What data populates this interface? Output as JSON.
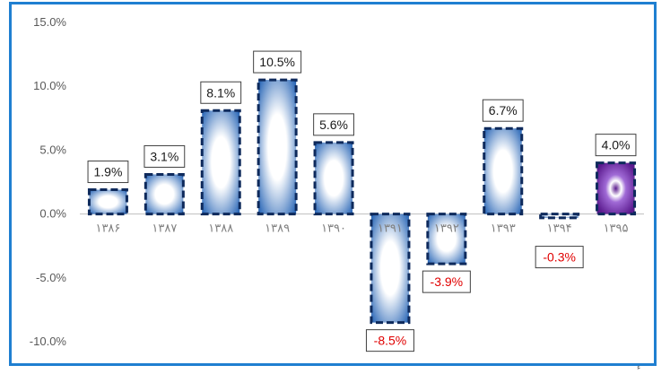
{
  "chart_data": {
    "type": "bar",
    "title": "",
    "xlabel": "",
    "ylabel": "",
    "categories": [
      "۱۳۸۶",
      "۱۳۸۷",
      "۱۳۸۸",
      "۱۳۸۹",
      "۱۳۹۰",
      "۱۳۹۱",
      "۱۳۹۲",
      "۱۳۹۳",
      "۱۳۹۴",
      "۱۳۹۵"
    ],
    "values": [
      1.9,
      3.1,
      8.1,
      10.5,
      5.6,
      -8.5,
      -3.9,
      6.7,
      -0.3,
      4.0
    ],
    "data_labels": [
      "1.9%",
      "3.1%",
      "8.1%",
      "10.5%",
      "5.6%",
      "-8.5%",
      "-3.9%",
      "6.7%",
      "-0.3%",
      "4.0%"
    ],
    "ylim": [
      -10,
      15
    ],
    "yticks": [
      15,
      10,
      5,
      0,
      -5,
      -10
    ],
    "ytick_labels": [
      "15.0%",
      "10.0%",
      "5.0%",
      "0.0%",
      "-5.0%",
      "-10.0%"
    ],
    "highlight_index": 9,
    "grid": false,
    "legend": "none"
  },
  "colors": {
    "frame": "#1f7fd1",
    "bar_edge": "#0e2a5c",
    "bar_fill_edge": "#1f5fb3",
    "bar_fill_center": "#ffffff",
    "highlight_fill_edge": "#5b1a8e",
    "highlight_fill_mid": "#a06ad6",
    "positive_label": "#1a1a1a",
    "negative_label": "#e00000",
    "axis": "#bfbfbf"
  },
  "footer_mark": "ء"
}
